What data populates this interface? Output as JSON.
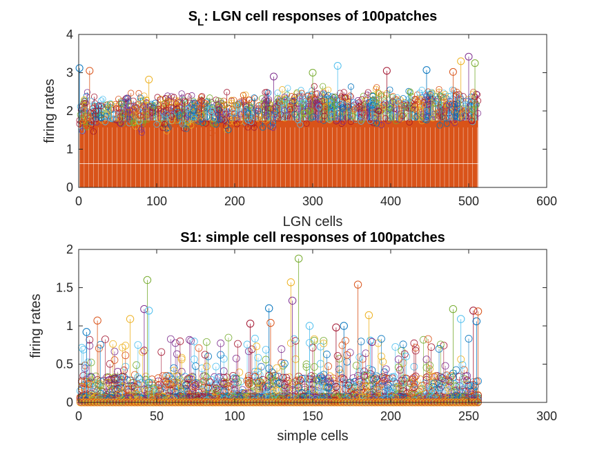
{
  "chart_data": [
    {
      "type": "stem",
      "title": "S",
      "title_sub": "L",
      "title_rest": ": LGN cell responses of 100patches",
      "xlabel": "LGN cells",
      "ylabel": "firing rates",
      "xlim": [
        0,
        600
      ],
      "ylim": [
        0,
        4
      ],
      "xticks": [
        "0",
        "100",
        "200",
        "300",
        "400",
        "500",
        "600"
      ],
      "yticks": [
        "0",
        "1",
        "2",
        "3",
        "4"
      ],
      "n_cells": 512,
      "n_series": 100,
      "series_colors": [
        "#0072BD",
        "#D95319",
        "#EDB120",
        "#7E2F8E",
        "#77AC30",
        "#4DBEEE",
        "#A2142F"
      ],
      "base_mean": 2.0,
      "fill_color": "#D95319",
      "peaks": [
        {
          "x": 1,
          "y": 3.12
        },
        {
          "x": 14,
          "y": 3.05
        },
        {
          "x": 90,
          "y": 2.82
        },
        {
          "x": 250,
          "y": 2.9
        },
        {
          "x": 300,
          "y": 3.0
        },
        {
          "x": 332,
          "y": 3.18
        },
        {
          "x": 395,
          "y": 3.05
        },
        {
          "x": 446,
          "y": 3.07
        },
        {
          "x": 480,
          "y": 3.02
        },
        {
          "x": 490,
          "y": 3.3
        },
        {
          "x": 500,
          "y": 3.42
        },
        {
          "x": 508,
          "y": 3.25
        }
      ]
    },
    {
      "type": "stem",
      "title": "S1: simple cell responses of 100patches",
      "xlabel": "simple cells",
      "ylabel": "firing rates",
      "xlim": [
        0,
        300
      ],
      "ylim": [
        0,
        2
      ],
      "xticks": [
        "0",
        "50",
        "100",
        "150",
        "200",
        "250",
        "300"
      ],
      "yticks": [
        "0",
        "0.5",
        "1",
        "1.5",
        "2"
      ],
      "n_cells": 256,
      "n_series": 100,
      "series_colors": [
        "#0072BD",
        "#D95319",
        "#EDB120",
        "#7E2F8E",
        "#77AC30",
        "#4DBEEE",
        "#A2142F"
      ],
      "peaks": [
        {
          "x": 5,
          "y": 0.92
        },
        {
          "x": 12,
          "y": 1.07
        },
        {
          "x": 33,
          "y": 1.09
        },
        {
          "x": 42,
          "y": 1.22
        },
        {
          "x": 44,
          "y": 1.6
        },
        {
          "x": 45,
          "y": 1.2
        },
        {
          "x": 110,
          "y": 1.03
        },
        {
          "x": 122,
          "y": 1.23
        },
        {
          "x": 123,
          "y": 1.04
        },
        {
          "x": 136,
          "y": 1.57
        },
        {
          "x": 137,
          "y": 1.33
        },
        {
          "x": 141,
          "y": 1.88
        },
        {
          "x": 148,
          "y": 1.0
        },
        {
          "x": 165,
          "y": 0.98
        },
        {
          "x": 170,
          "y": 1.0
        },
        {
          "x": 179,
          "y": 1.54
        },
        {
          "x": 186,
          "y": 1.14
        },
        {
          "x": 188,
          "y": 0.79
        },
        {
          "x": 240,
          "y": 1.22
        },
        {
          "x": 245,
          "y": 1.09
        },
        {
          "x": 253,
          "y": 1.2
        },
        {
          "x": 255,
          "y": 1.06
        },
        {
          "x": 256,
          "y": 1.19
        }
      ]
    }
  ]
}
